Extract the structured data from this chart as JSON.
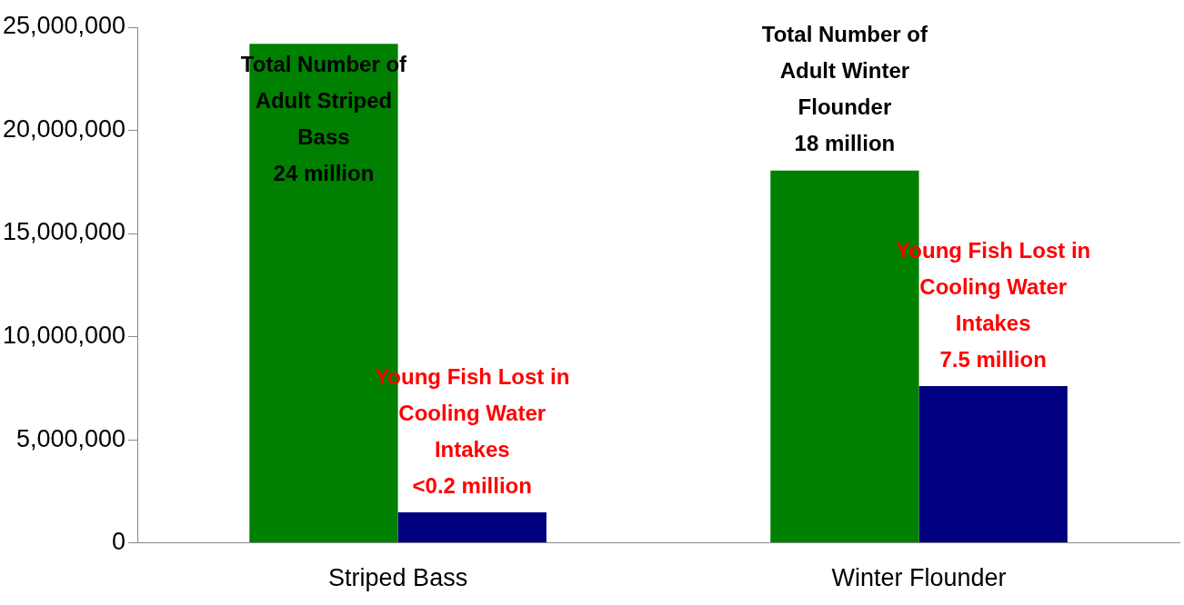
{
  "chart_data": {
    "type": "bar",
    "categories": [
      "Striped Bass",
      "Winter Flounder"
    ],
    "series": [
      {
        "color": "#008000",
        "values": [
          24200000,
          18050000
        ],
        "value_labels": [
          "Total Number of\nAdult Striped\nBass\n24 million",
          "Total Number of\nAdult Winter\nFlounder\n18 million"
        ]
      },
      {
        "color": "#000080",
        "values": [
          1480000,
          7600000
        ],
        "value_labels": [
          "Young Fish Lost in\nCooling Water\nIntakes\n<0.2 million",
          "Young Fish Lost in\nCooling Water\nIntakes\n7.5 million"
        ]
      }
    ],
    "ylim": [
      0,
      25000000
    ],
    "yticks": [
      0,
      {
        "value": 5000000,
        "label": "5,000,000"
      },
      {
        "value": 10000000,
        "label": "10,000,000"
      },
      {
        "value": 15000000,
        "label": "15,000,000"
      },
      {
        "value": 20000000,
        "label": "20,000,000"
      },
      {
        "value": 25000000,
        "label": "25,000,000"
      }
    ],
    "grid": false,
    "legend": false
  }
}
